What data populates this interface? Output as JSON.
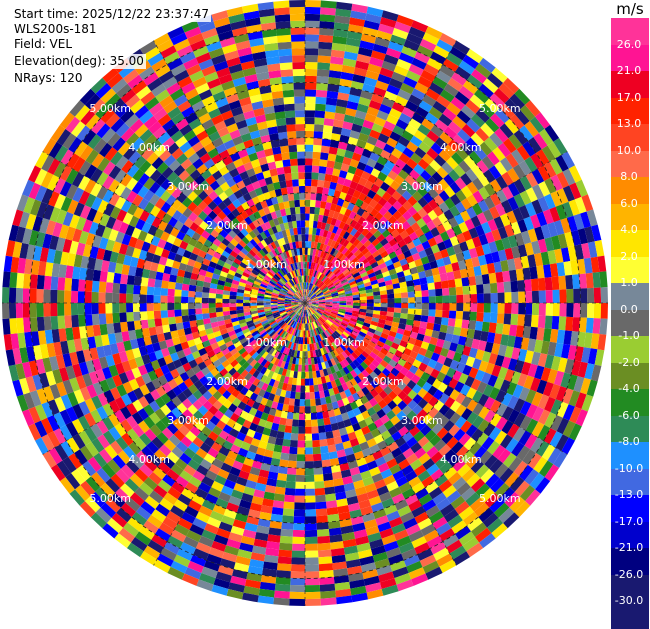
{
  "header": {
    "start_time": "Start time: 2025/12/22 23:37:47",
    "instrument": "WLS200s-181",
    "field": "Field: VEL",
    "elevation": "Elevation(deg): 35.00",
    "nrays": "NRays: 120"
  },
  "colorbar": {
    "unit": "m/s",
    "ticks": [
      "26.0",
      "21.0",
      "17.0",
      "13.0",
      "10.0",
      "8.0",
      "6.0",
      "4.0",
      "2.0",
      "1.0",
      "0.0",
      "-1.0",
      "-2.0",
      "-4.0",
      "-6.0",
      "-8.0",
      "-10.0",
      "-13.0",
      "-17.0",
      "-21.0",
      "-26.0",
      "-30.0"
    ],
    "colors": [
      "#ff3399",
      "#ff1493",
      "#ee0022",
      "#ff2200",
      "#ff4422",
      "#ff6a4a",
      "#ff8c00",
      "#ffb400",
      "#ffe600",
      "#ffff33",
      "#778899",
      "#696969",
      "#9acd32",
      "#6b8e23",
      "#228b22",
      "#2e8b57",
      "#1e90ff",
      "#4169e1",
      "#0000ff",
      "#0000cd",
      "#000080",
      "#191970",
      "#191970"
    ]
  },
  "chart_data": {
    "type": "heatmap",
    "projection": "polar PPI",
    "field": "VEL",
    "units": "m/s",
    "nrays": 120,
    "range_rings": [
      "1.00km",
      "2.00km",
      "3.00km",
      "4.00km",
      "5.00km"
    ],
    "ring_label_sets": {
      "1.00km": [
        "1.00km",
        "1.00km",
        "1.00km",
        "1.00km"
      ],
      "2.00km": [
        "2.00km",
        "2.00km",
        "2.00km",
        "2.00km"
      ],
      "3.00km": [
        "3.00km",
        "3.00km",
        "3.00km",
        "3.00km"
      ],
      "4.00km": [
        "4.00km",
        "4.00km",
        "4.00km",
        "4.00km"
      ],
      "5.00km": [
        "5.00km",
        "5.00km",
        "5.00km",
        "5.00km"
      ]
    },
    "note_values": "Velocity values are dense noise-like speckle across the scan; a coherent region of positive velocities (10 to 21 m/s) appears northeast of center and a smaller one southeast."
  }
}
